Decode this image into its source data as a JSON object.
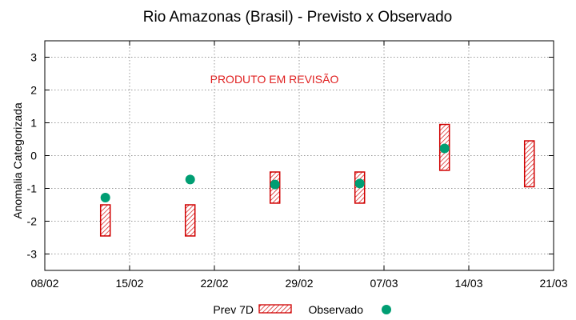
{
  "chart_data": {
    "type": "range-bar-scatter",
    "title": "Rio Amazonas (Brasil) - Previsto x Observado",
    "xlabel": "",
    "ylabel": "Anomalia Categorizada",
    "annotation": "PRODUTO EM REVISÃO",
    "x_ticks": [
      "08/02",
      "15/02",
      "22/02",
      "29/02",
      "07/03",
      "14/03",
      "21/03"
    ],
    "x_tick_days": [
      0,
      7,
      14,
      21,
      28,
      35,
      42
    ],
    "xlim": [
      0,
      42
    ],
    "ylim": [
      -3.5,
      3.5
    ],
    "y_ticks": [
      -3,
      -2,
      -1,
      0,
      1,
      2,
      3
    ],
    "grid": true,
    "legend": {
      "position": "bottom",
      "entries": [
        "Prev 7D",
        "Observado"
      ]
    },
    "forecast_color": "#d00000",
    "observed_color": "#009e73",
    "annotation_color": "#e02020",
    "series": [
      {
        "name": "Prev 7D",
        "kind": "range",
        "points": [
          {
            "x": 5,
            "low": -2.45,
            "high": -1.5
          },
          {
            "x": 12,
            "low": -2.45,
            "high": -1.5
          },
          {
            "x": 19,
            "low": -1.45,
            "high": -0.5
          },
          {
            "x": 26,
            "low": -1.45,
            "high": -0.5
          },
          {
            "x": 33,
            "low": -0.45,
            "high": 0.95
          },
          {
            "x": 40,
            "low": -0.95,
            "high": 0.45
          }
        ]
      },
      {
        "name": "Observado",
        "kind": "scatter",
        "points": [
          {
            "x": 5,
            "y": -1.28
          },
          {
            "x": 12,
            "y": -0.73
          },
          {
            "x": 19,
            "y": -0.88
          },
          {
            "x": 26,
            "y": -0.85
          },
          {
            "x": 33,
            "y": 0.22
          }
        ]
      }
    ]
  }
}
